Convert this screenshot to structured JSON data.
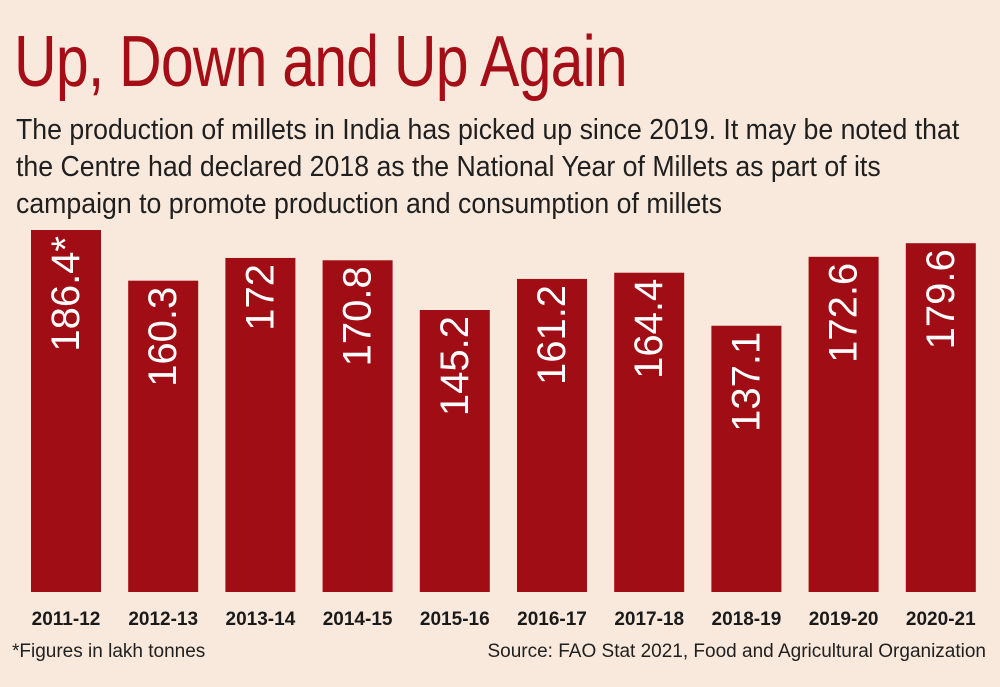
{
  "header": {
    "title": "Up, Down and Up Again",
    "subtitle": "The production of millets in India has picked up since 2019. It may be noted that the Centre had declared 2018 as the National Year of Millets as part of its campaign to promote production and consumption of millets"
  },
  "footer": {
    "note": "*Figures in lakh tonnes",
    "source": "Source: FAO Stat 2021, Food and Agricultural Organization"
  },
  "colors": {
    "bar": "#a00d14",
    "title": "#a50e16",
    "background": "#f9e9dc"
  },
  "chart_data": {
    "type": "bar",
    "title": "Up, Down and Up Again",
    "xlabel": "",
    "ylabel": "",
    "unit": "lakh tonnes",
    "grid": false,
    "legend": "none",
    "ylim": [
      0,
      186.4
    ],
    "categories": [
      "2011-12",
      "2012-13",
      "2013-14",
      "2014-15",
      "2015-16",
      "2016-17",
      "2017-18",
      "2018-19",
      "2019-20",
      "2020-21"
    ],
    "values": [
      186.4,
      160.3,
      172,
      170.8,
      145.2,
      161.2,
      164.4,
      137.1,
      172.6,
      179.6
    ],
    "data_labels": [
      "186.4*",
      "160.3",
      "172",
      "170.8",
      "145.2",
      "161.2",
      "164.4",
      "137.1",
      "172.6",
      "179.6"
    ]
  }
}
